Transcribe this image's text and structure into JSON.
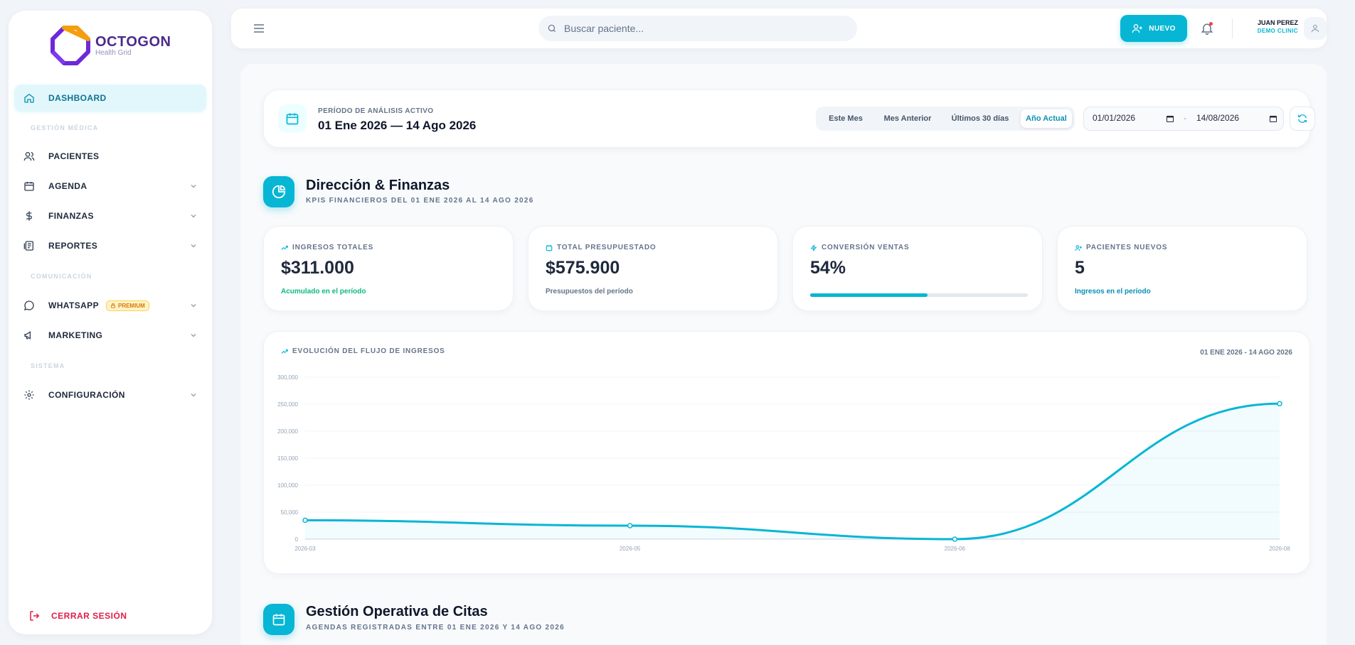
{
  "brand": {
    "name": "OCTOGON",
    "tagline": "Health Grid"
  },
  "sidebar": {
    "items": [
      {
        "label": "DASHBOARD",
        "icon": "home-icon"
      },
      {
        "label": "PACIENTES",
        "icon": "users-icon"
      },
      {
        "label": "AGENDA",
        "icon": "calendar-icon"
      },
      {
        "label": "FINANZAS",
        "icon": "dollar-icon"
      },
      {
        "label": "REPORTES",
        "icon": "report-icon"
      },
      {
        "label": "WHATSAPP",
        "icon": "chat-icon",
        "badge": "PREMIUM"
      },
      {
        "label": "MARKETING",
        "icon": "megaphone-icon"
      },
      {
        "label": "CONFIGURACIÓN",
        "icon": "gear-icon"
      }
    ],
    "sections": [
      "GESTIÓN MÉDICA",
      "COMUNICACIÓN",
      "SISTEMA"
    ],
    "logout": "CERRAR SESIÓN"
  },
  "topbar": {
    "search_placeholder": "Buscar paciente...",
    "new_button": "NUEVO",
    "user_name": "JUAN PEREZ",
    "user_clinic": "DEMO CLINIC"
  },
  "period": {
    "label": "PERÍODO DE ANÁLISIS ACTIVO",
    "value": "01 Ene 2026 — 14 Ago 2026",
    "quick_filters": [
      "Este Mes",
      "Mes Anterior",
      "Últimos 30 días",
      "Año Actual"
    ],
    "active_filter": "Año Actual",
    "date_from": "01/01/2026",
    "date_to": "14/08/2026",
    "dash": "-"
  },
  "finance": {
    "title": "Dirección & Finanzas",
    "subtitle": "KPIS FINANCIEROS DEL 01 ENE 2026 AL 14 AGO 2026"
  },
  "kpis": [
    {
      "label": "INGRESOS TOTALES",
      "value": "$311.000",
      "note": "Acumulado en el período",
      "note_color": "#10b981"
    },
    {
      "label": "TOTAL PRESUPUESTADO",
      "value": "$575.900",
      "note": "Presupuestos del período",
      "note_color": "#64748b"
    },
    {
      "label": "CONVERSIÓN VENTAS",
      "value": "54%",
      "progress": 0.54
    },
    {
      "label": "PACIENTES NUEVOS",
      "value": "5",
      "note": "Ingresos en el período",
      "note_color": "#0891b2"
    }
  ],
  "chart_card": {
    "title": "EVOLUCIÓN DEL FLUJO DE INGRESOS",
    "range": "01 ENE 2026 - 14 AGO 2026"
  },
  "chart_data": {
    "type": "area",
    "x": [
      "2026-03",
      "2026-05",
      "2026-06",
      "2026-08"
    ],
    "series": [
      {
        "values": [
          35000,
          25000,
          0,
          251000
        ]
      }
    ],
    "ylim": [
      0,
      300000
    ],
    "yticks": [
      "0",
      "50,000",
      "100,000",
      "150,000",
      "200,000",
      "250,000",
      "300,000"
    ],
    "grid": true,
    "color": "#06b6d4"
  },
  "citas": {
    "title": "Gestión Operativa de Citas",
    "subtitle": "AGENDAS REGISTRADAS ENTRE 01 ENE 2026 Y 14 AGO 2026"
  },
  "colors": {
    "accent": "#06b6d4",
    "danger": "#e11d48",
    "brand": "#4c2a8a"
  }
}
